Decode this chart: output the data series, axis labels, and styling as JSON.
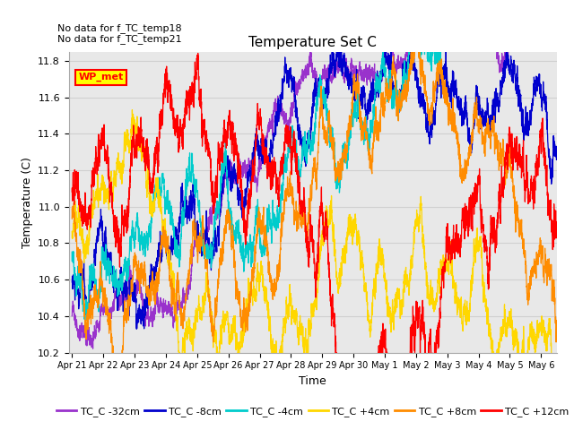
{
  "title": "Temperature Set C",
  "xlabel": "Time",
  "ylabel": "Temperature (C)",
  "ylim": [
    10.2,
    11.85
  ],
  "xlim_start": -0.1,
  "xlim_end": 15.5,
  "annotations": [
    "No data for f_TC_temp18",
    "No data for f_TC_temp21"
  ],
  "wp_met_label": "WP_met",
  "series_labels": [
    "TC_C -32cm",
    "TC_C -8cm",
    "TC_C -4cm",
    "TC_C +4cm",
    "TC_C +8cm",
    "TC_C +12cm"
  ],
  "series_colors": [
    "#9932CC",
    "#0000CD",
    "#00CCCC",
    "#FFD700",
    "#FF8C00",
    "#FF0000"
  ],
  "xtick_labels": [
    "Apr 21",
    "Apr 22",
    "Apr 23",
    "Apr 24",
    "Apr 25",
    "Apr 26",
    "Apr 27",
    "Apr 28",
    "Apr 29",
    "Apr 30",
    "May 1",
    "May 2",
    "May 3",
    "May 4",
    "May 5",
    "May 6"
  ],
  "grid_color": "#d0d0d0",
  "plot_bg_color": "#e8e8e8",
  "n_points": 3600,
  "seed": 42
}
